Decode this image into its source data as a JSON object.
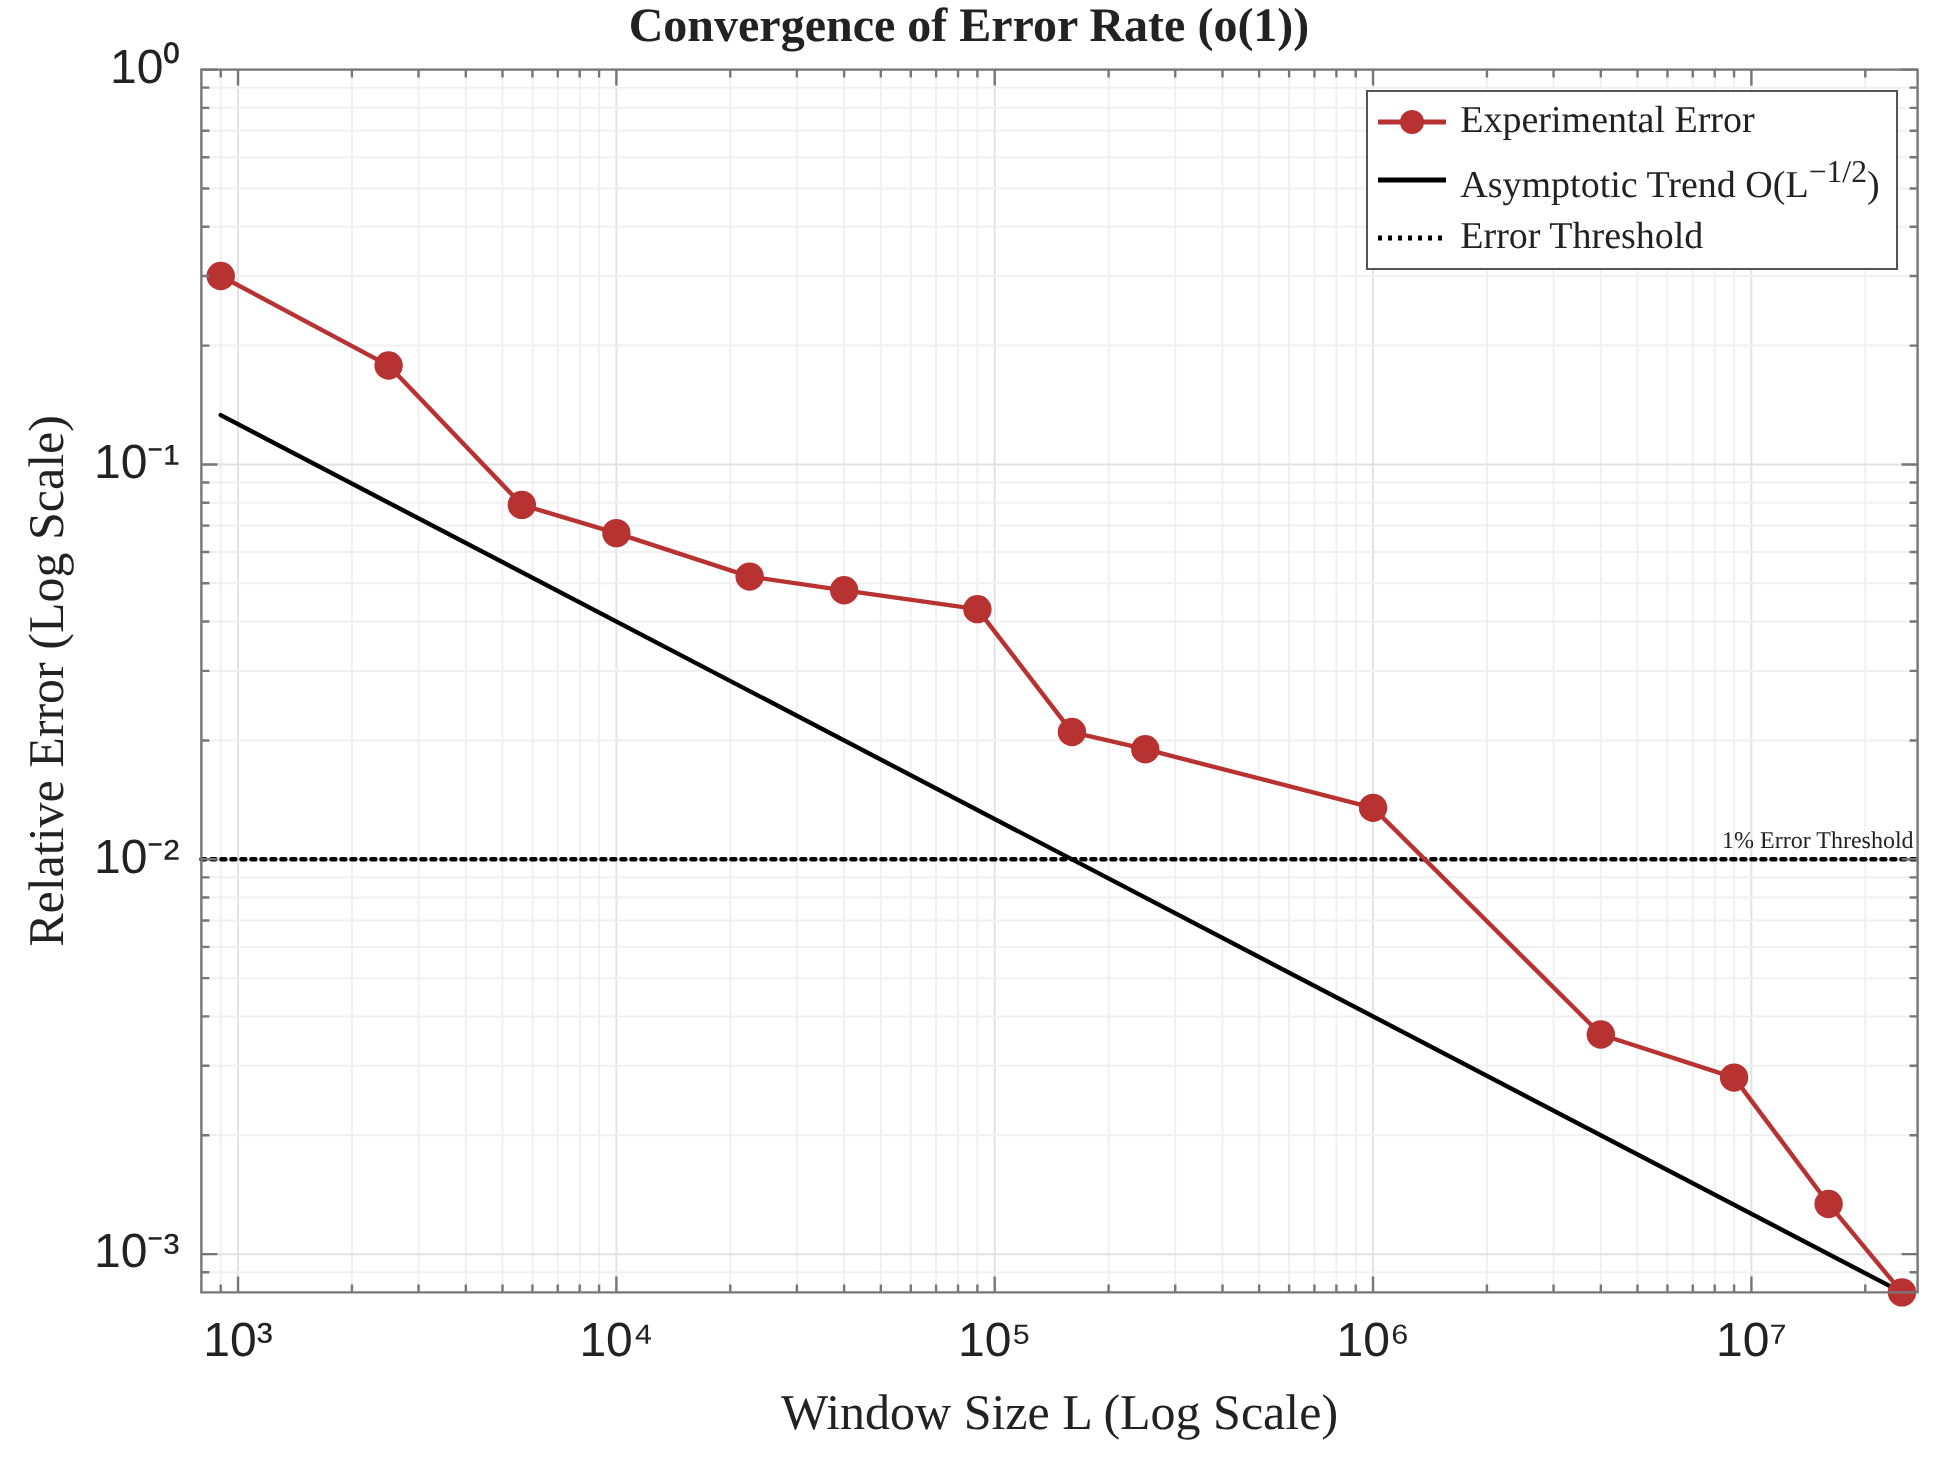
{
  "chart_data": {
    "type": "line",
    "title": "Convergence of Error Rate (o(1))",
    "xlabel": "Window Size L (Log Scale)",
    "ylabel": "Relative Error (Log Scale)",
    "log": "xy",
    "grid": true,
    "legend": "top right",
    "xlim": [
      800,
      27500000
    ],
    "ylim": [
      0.0008,
      1
    ],
    "xticks": [
      {
        "value": 1000,
        "label": "10³"
      },
      {
        "value": 10000,
        "label": "10⁴"
      },
      {
        "value": 100000,
        "label": "10⁵"
      },
      {
        "value": 1000000,
        "label": "10⁶"
      },
      {
        "value": 10000000,
        "label": "10⁷"
      }
    ],
    "yticks": [
      {
        "value": 0.001,
        "label": "10⁻³"
      },
      {
        "value": 0.01,
        "label": "10⁻²"
      },
      {
        "value": 0.1,
        "label": "10⁻¹"
      },
      {
        "value": 1,
        "label": "10⁰"
      }
    ],
    "series": [
      {
        "name": "Experimental Error",
        "color": "#b83232",
        "marker": "circle",
        "line_style": "solid",
        "x": [
          900,
          2500,
          5625,
          10000,
          22500,
          40000,
          90000,
          160000,
          250000,
          1000000,
          4000000,
          9000000,
          16000000,
          25000000
        ],
        "values": [
          0.3,
          0.178,
          0.079,
          0.067,
          0.052,
          0.048,
          0.043,
          0.021,
          0.019,
          0.0135,
          0.0036,
          0.0028,
          0.00134,
          0.0008
        ]
      },
      {
        "name": "Asymptotic Trend O(L$^{−1/2}$)",
        "color": "#000000",
        "marker": "none",
        "line_style": "solid",
        "x": [
          900,
          25000000
        ],
        "values": [
          0.1333,
          0.0008
        ]
      },
      {
        "name": "Error Threshold",
        "color": "#000000",
        "marker": "none",
        "line_style": "dotted",
        "x": [
          800,
          27500000
        ],
        "values": [
          0.01,
          0.01
        ]
      }
    ],
    "annotations": [
      {
        "text": "1% Error Threshold",
        "y": 0.01
      }
    ]
  }
}
